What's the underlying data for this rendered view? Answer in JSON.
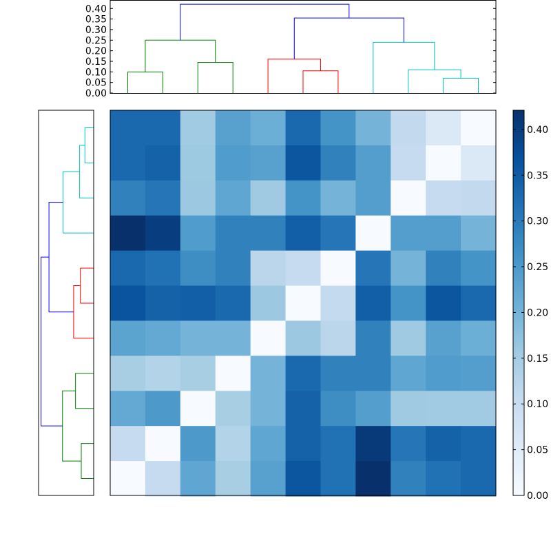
{
  "chart_data": {
    "type": "heatmap",
    "title": "",
    "colormap": "Blues",
    "vlim": [
      0,
      0.421
    ],
    "matrix": [
      [
        0.33,
        0.33,
        0.155,
        0.235,
        0.21,
        0.33,
        0.26,
        0.2,
        0.11,
        0.06,
        0.0
      ],
      [
        0.33,
        0.34,
        0.158,
        0.245,
        0.235,
        0.36,
        0.29,
        0.24,
        0.105,
        0.0,
        0.06
      ],
      [
        0.29,
        0.31,
        0.16,
        0.225,
        0.157,
        0.26,
        0.2,
        0.24,
        0.0,
        0.105,
        0.11
      ],
      [
        0.42,
        0.4,
        0.245,
        0.29,
        0.29,
        0.345,
        0.31,
        0.0,
        0.24,
        0.24,
        0.2
      ],
      [
        0.33,
        0.315,
        0.27,
        0.29,
        0.12,
        0.105,
        0.0,
        0.31,
        0.2,
        0.29,
        0.26
      ],
      [
        0.365,
        0.34,
        0.345,
        0.33,
        0.16,
        0.0,
        0.108,
        0.345,
        0.26,
        0.36,
        0.33
      ],
      [
        0.23,
        0.22,
        0.2,
        0.2,
        0.0,
        0.16,
        0.12,
        0.29,
        0.157,
        0.235,
        0.21
      ],
      [
        0.145,
        0.13,
        0.145,
        0.0,
        0.2,
        0.33,
        0.29,
        0.29,
        0.225,
        0.245,
        0.24
      ],
      [
        0.22,
        0.25,
        0.0,
        0.145,
        0.2,
        0.34,
        0.27,
        0.24,
        0.157,
        0.155,
        0.155
      ],
      [
        0.105,
        0.0,
        0.25,
        0.13,
        0.225,
        0.34,
        0.315,
        0.405,
        0.31,
        0.34,
        0.33
      ],
      [
        0.0,
        0.105,
        0.225,
        0.145,
        0.235,
        0.36,
        0.315,
        0.42,
        0.29,
        0.315,
        0.33
      ]
    ],
    "colorbar": {
      "ticks": [
        "0.00",
        "0.05",
        "0.10",
        "0.15",
        "0.20",
        "0.25",
        "0.30",
        "0.35",
        "0.40"
      ],
      "tick_values": [
        0,
        0.05,
        0.1,
        0.15,
        0.2,
        0.25,
        0.3,
        0.35,
        0.4
      ]
    },
    "column_dendrogram": {
      "ylim": [
        0,
        0.44
      ],
      "ticks": [
        "0.00",
        "0.05",
        "0.10",
        "0.15",
        "0.20",
        "0.25",
        "0.30",
        "0.35",
        "0.40"
      ],
      "tick_values": [
        0,
        0.05,
        0.1,
        0.15,
        0.2,
        0.25,
        0.3,
        0.35,
        0.4
      ],
      "merges": [
        [
          0,
          1,
          0.1,
          "#008000"
        ],
        [
          2,
          3,
          0.145,
          "#008000"
        ],
        [
          11,
          12,
          0.25,
          "#008000"
        ],
        [
          5,
          6,
          0.105,
          "#ff0000"
        ],
        [
          4,
          14,
          0.16,
          "#ff0000"
        ],
        [
          9,
          10,
          0.07,
          "#00bfbf"
        ],
        [
          8,
          16,
          0.11,
          "#00bfbf"
        ],
        [
          7,
          17,
          0.24,
          "#00bfbf"
        ],
        [
          15,
          18,
          0.355,
          "#0000ff"
        ],
        [
          13,
          19,
          0.42,
          "#0000ff"
        ]
      ]
    },
    "row_dendrogram": {
      "xlim": [
        0,
        0.44
      ],
      "merges": [
        [
          0,
          1,
          0.07,
          "#00bfbf"
        ],
        [
          2,
          11,
          0.112,
          "#00bfbf"
        ],
        [
          3,
          12,
          0.244,
          "#00bfbf"
        ],
        [
          4,
          5,
          0.106,
          "#ff0000"
        ],
        [
          6,
          14,
          0.16,
          "#ff0000"
        ],
        [
          7,
          8,
          0.145,
          "#008000"
        ],
        [
          9,
          10,
          0.099,
          "#008000"
        ],
        [
          16,
          17,
          0.249,
          "#008000"
        ],
        [
          13,
          15,
          0.357,
          "#0000ff"
        ],
        [
          19,
          18,
          0.42,
          "#0000ff"
        ]
      ]
    }
  }
}
